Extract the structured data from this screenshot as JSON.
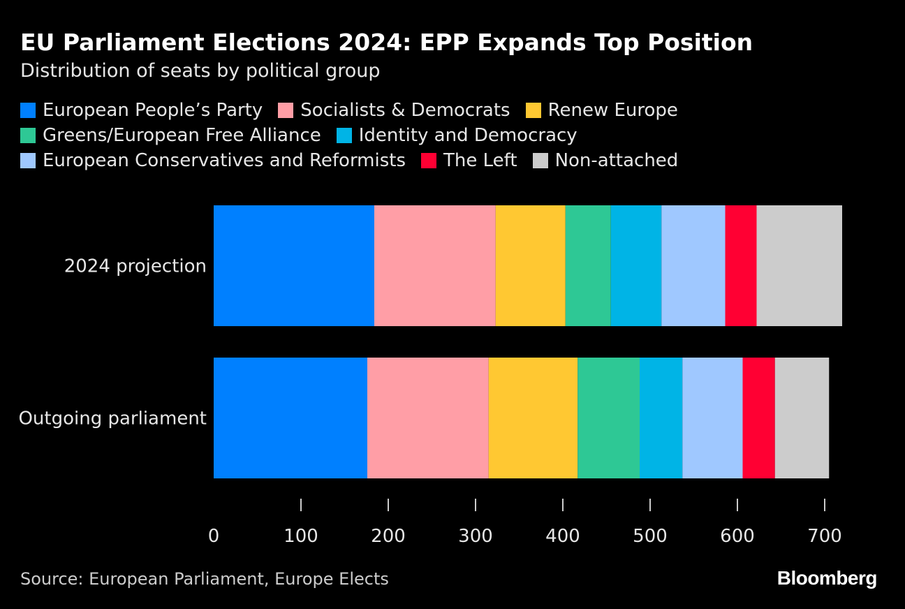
{
  "title": "EU Parliament Elections 2024: EPP Expands Top Position",
  "subtitle": "Distribution of seats by political group",
  "legend": [
    [
      "European People’s Party",
      "Socialists & Democrats",
      "Renew Europe"
    ],
    [
      "Greens/European Free Alliance",
      "Identity and Democracy"
    ],
    [
      "European Conservatives and Reformists",
      "The Left",
      "Non-attached"
    ]
  ],
  "source": "Source: European Parliament, Europe Elects",
  "brand": "Bloomberg",
  "chart_data": {
    "type": "bar",
    "orientation": "horizontal",
    "stacked": true,
    "categories": [
      "2024 projection",
      "Outgoing parliament"
    ],
    "series": [
      {
        "name": "European People’s Party",
        "color": "#0080ff",
        "values": [
          184,
          176
        ]
      },
      {
        "name": "Socialists & Democrats",
        "color": "#ff9ea6",
        "values": [
          139,
          139
        ]
      },
      {
        "name": "Renew Europe",
        "color": "#ffc832",
        "values": [
          80,
          102
        ]
      },
      {
        "name": "Greens/European Free Alliance",
        "color": "#2ec895",
        "values": [
          52,
          71
        ]
      },
      {
        "name": "Identity and Democracy",
        "color": "#00b4e6",
        "values": [
          58,
          49
        ]
      },
      {
        "name": "European Conservatives and Reformists",
        "color": "#9fc8ff",
        "values": [
          73,
          69
        ]
      },
      {
        "name": "The Left",
        "color": "#ff0033",
        "values": [
          36,
          37
        ]
      },
      {
        "name": "Non-attached",
        "color": "#cccccc",
        "values": [
          98,
          62
        ]
      }
    ],
    "xticks": [
      0,
      100,
      200,
      300,
      400,
      500,
      600,
      700
    ],
    "xlim": [
      0,
      720
    ],
    "xlabel": "",
    "ylabel": "",
    "grid": false,
    "legend_position": "top"
  }
}
